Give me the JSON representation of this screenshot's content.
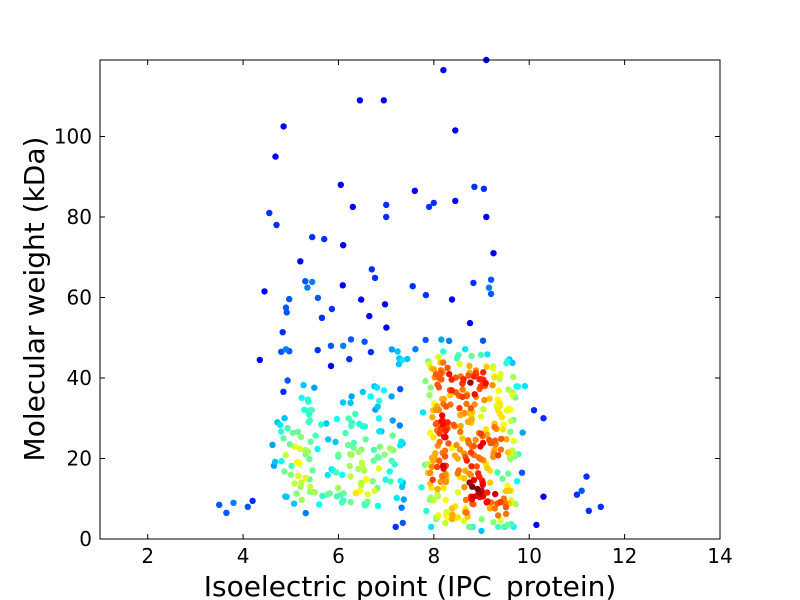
{
  "chart_data": {
    "type": "scatter",
    "title": "",
    "xlabel": "Isoelectric point (IPC_protein)",
    "ylabel": "Molecular weight (kDa)",
    "xlim": [
      1,
      14
    ],
    "ylim": [
      0,
      119
    ],
    "xticks": [
      2,
      4,
      6,
      8,
      10,
      12,
      14
    ],
    "yticks": [
      0,
      20,
      40,
      60,
      80,
      100
    ],
    "grid": false,
    "legend": "none",
    "color_by": "point density (jet colormap: blue = low, dark red = high)",
    "colors": {
      "low": "#0000cd",
      "mid_low": "#0090ff",
      "mid": "#3ff2c6",
      "mid_high": "#ffe000",
      "high": "#e00000",
      "highest": "#800000"
    },
    "points_sampled": [
      {
        "x": 3.5,
        "y": 8.5
      },
      {
        "x": 3.65,
        "y": 6.5
      },
      {
        "x": 3.8,
        "y": 9
      },
      {
        "x": 4.1,
        "y": 8
      },
      {
        "x": 4.2,
        "y": 9.5
      },
      {
        "x": 4.35,
        "y": 44.5
      },
      {
        "x": 4.45,
        "y": 61.5
      },
      {
        "x": 4.55,
        "y": 81
      },
      {
        "x": 4.68,
        "y": 95
      },
      {
        "x": 4.7,
        "y": 78
      },
      {
        "x": 4.85,
        "y": 102.5
      },
      {
        "x": 4.8,
        "y": 46.5
      },
      {
        "x": 4.9,
        "y": 57.5
      },
      {
        "x": 5.2,
        "y": 69
      },
      {
        "x": 5.45,
        "y": 75
      },
      {
        "x": 5.7,
        "y": 74.5
      },
      {
        "x": 6.05,
        "y": 88
      },
      {
        "x": 6.1,
        "y": 73
      },
      {
        "x": 6.3,
        "y": 82.5
      },
      {
        "x": 6.45,
        "y": 109
      },
      {
        "x": 6.7,
        "y": 67
      },
      {
        "x": 6.95,
        "y": 109
      },
      {
        "x": 7.0,
        "y": 83
      },
      {
        "x": 7.0,
        "y": 80
      },
      {
        "x": 7.6,
        "y": 86.5
      },
      {
        "x": 7.9,
        "y": 82.5
      },
      {
        "x": 8.0,
        "y": 83.5
      },
      {
        "x": 8.2,
        "y": 116.5
      },
      {
        "x": 8.45,
        "y": 101.5
      },
      {
        "x": 8.45,
        "y": 84
      },
      {
        "x": 8.85,
        "y": 87.5
      },
      {
        "x": 9.05,
        "y": 87
      },
      {
        "x": 9.1,
        "y": 119
      },
      {
        "x": 9.1,
        "y": 80
      },
      {
        "x": 9.25,
        "y": 71
      },
      {
        "x": 10.1,
        "y": 32
      },
      {
        "x": 10.3,
        "y": 30
      },
      {
        "x": 10.15,
        "y": 3.5
      },
      {
        "x": 10.3,
        "y": 10.5
      },
      {
        "x": 11.0,
        "y": 11
      },
      {
        "x": 11.1,
        "y": 12
      },
      {
        "x": 11.2,
        "y": 15.5
      },
      {
        "x": 11.25,
        "y": 7
      },
      {
        "x": 11.5,
        "y": 8
      },
      {
        "x": 7.2,
        "y": 3
      },
      {
        "x": 7.35,
        "y": 4
      },
      {
        "x": 9.0,
        "y": 2
      },
      {
        "x": 8.9,
        "y": 18
      },
      {
        "x": 8.6,
        "y": 25
      },
      {
        "x": 8.75,
        "y": 14
      },
      {
        "x": 9.0,
        "y": 12
      },
      {
        "x": 8.5,
        "y": 20
      }
    ]
  }
}
